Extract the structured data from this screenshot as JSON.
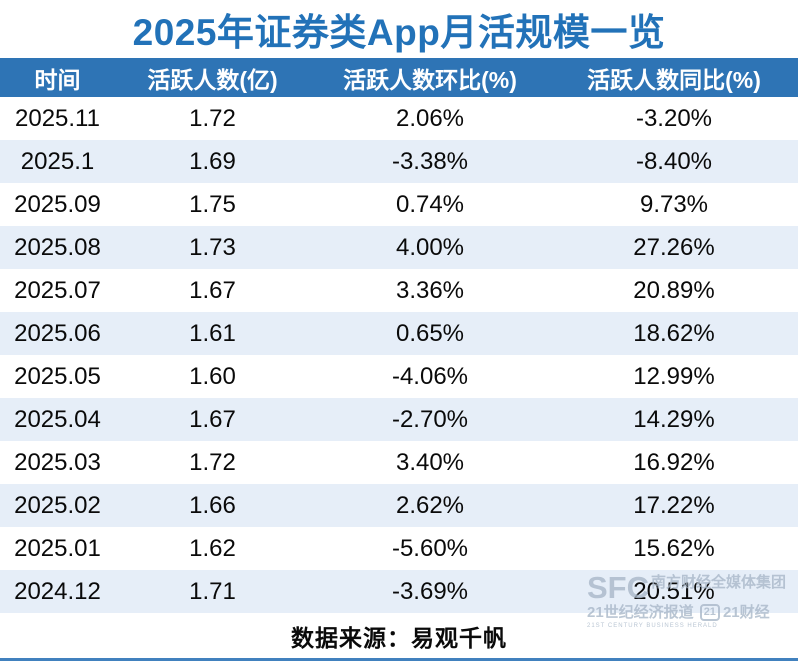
{
  "title": "2025年证券类App月活规模一览",
  "table": {
    "headers": [
      "时间",
      "活跃人数(亿)",
      "活跃人数环比(%)",
      "活跃人数同比(%)"
    ],
    "rows": [
      [
        "2025.11",
        "1.72",
        "2.06%",
        "-3.20%"
      ],
      [
        "2025.1",
        "1.69",
        "-3.38%",
        "-8.40%"
      ],
      [
        "2025.09",
        "1.75",
        "0.74%",
        "9.73%"
      ],
      [
        "2025.08",
        "1.73",
        "4.00%",
        "27.26%"
      ],
      [
        "2025.07",
        "1.67",
        "3.36%",
        "20.89%"
      ],
      [
        "2025.06",
        "1.61",
        "0.65%",
        "18.62%"
      ],
      [
        "2025.05",
        "1.60",
        "-4.06%",
        "12.99%"
      ],
      [
        "2025.04",
        "1.67",
        "-2.70%",
        "14.29%"
      ],
      [
        "2025.03",
        "1.72",
        "3.40%",
        "16.92%"
      ],
      [
        "2025.02",
        "1.66",
        "2.62%",
        "17.22%"
      ],
      [
        "2025.01",
        "1.62",
        "-5.60%",
        "15.62%"
      ],
      [
        "2024.12",
        "1.71",
        "-3.69%",
        "20.51%"
      ]
    ]
  },
  "footer": {
    "source_label": "数据来源：易观千帆"
  },
  "watermark": {
    "sfc": "SFC",
    "group": "南方财经全媒体集团",
    "herald": "21世纪经济报道",
    "logo21": "21",
    "caijing": "21财经",
    "herald_en": "21ST CENTURY BUSINESS HERALD"
  },
  "colors": {
    "title_blue": "#2272B8",
    "header_bg": "#2E74B5",
    "stripe_bg": "#E6EEF8",
    "bottom_rule": "#4181BE",
    "watermark_gray": "#A9B8C9"
  },
  "chart_data": {
    "type": "table",
    "title": "2025年证券类App月活规模一览",
    "columns": [
      "时间",
      "活跃人数(亿)",
      "活跃人数环比(%)",
      "活跃人数同比(%)"
    ],
    "rows": [
      {
        "time": "2025.11",
        "mau_100m": 1.72,
        "mom_pct": 2.06,
        "yoy_pct": -3.2
      },
      {
        "time": "2025.1",
        "mau_100m": 1.69,
        "mom_pct": -3.38,
        "yoy_pct": -8.4
      },
      {
        "time": "2025.09",
        "mau_100m": 1.75,
        "mom_pct": 0.74,
        "yoy_pct": 9.73
      },
      {
        "time": "2025.08",
        "mau_100m": 1.73,
        "mom_pct": 4.0,
        "yoy_pct": 27.26
      },
      {
        "time": "2025.07",
        "mau_100m": 1.67,
        "mom_pct": 3.36,
        "yoy_pct": 20.89
      },
      {
        "time": "2025.06",
        "mau_100m": 1.61,
        "mom_pct": 0.65,
        "yoy_pct": 18.62
      },
      {
        "time": "2025.05",
        "mau_100m": 1.6,
        "mom_pct": -4.06,
        "yoy_pct": 12.99
      },
      {
        "time": "2025.04",
        "mau_100m": 1.67,
        "mom_pct": -2.7,
        "yoy_pct": 14.29
      },
      {
        "time": "2025.03",
        "mau_100m": 1.72,
        "mom_pct": 3.4,
        "yoy_pct": 16.92
      },
      {
        "time": "2025.02",
        "mau_100m": 1.66,
        "mom_pct": 2.62,
        "yoy_pct": 17.22
      },
      {
        "time": "2025.01",
        "mau_100m": 1.62,
        "mom_pct": -5.6,
        "yoy_pct": 15.62
      },
      {
        "time": "2024.12",
        "mau_100m": 1.71,
        "mom_pct": -3.69,
        "yoy_pct": 20.51
      }
    ],
    "source": "数据来源：易观千帆"
  }
}
